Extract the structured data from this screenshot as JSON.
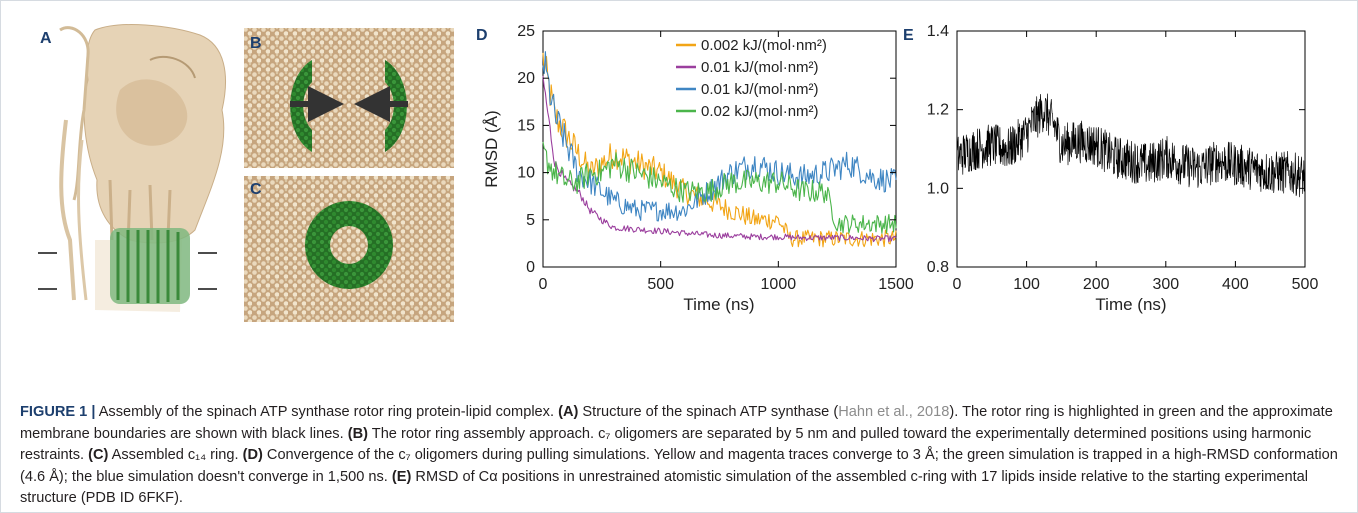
{
  "panels": {
    "a": {
      "letter": "A"
    },
    "b": {
      "letter": "B"
    },
    "c": {
      "letter": "C"
    },
    "d": {
      "letter": "D"
    },
    "e": {
      "letter": "E"
    }
  },
  "colors": {
    "protein": "#d9c2a0",
    "rotor": "#3f8f3f",
    "lipid": "#ead9bd",
    "lipid_bg": "#c6a57e",
    "ring": "#2a7f2a",
    "yellow": "#f2a516",
    "magenta": "#9b3f9e",
    "blue": "#3f86c3",
    "green": "#4bb54b",
    "black": "#000000",
    "label_blue": "#1d3f6e"
  },
  "chart_data": [
    {
      "panel": "D",
      "type": "line",
      "xlabel": "Time (ns)",
      "ylabel": "RMSD (Å)",
      "xlim": [
        0,
        1500
      ],
      "ylim": [
        0,
        25
      ],
      "xticks": [
        0,
        500,
        1000,
        1500
      ],
      "yticks": [
        0,
        5,
        10,
        15,
        20,
        25
      ],
      "legend_position": "top-right",
      "series": [
        {
          "name": "0.002 kJ/(mol·nm²)",
          "color": "#f2a516",
          "x": [
            0,
            50,
            100,
            150,
            200,
            250,
            300,
            400,
            500,
            600,
            700,
            800,
            900,
            1000,
            1050,
            1100,
            1200,
            1300,
            1400,
            1500
          ],
          "y": [
            22,
            16,
            14,
            12,
            10,
            11,
            12,
            11,
            10,
            8,
            7,
            6,
            5,
            5,
            3,
            3,
            3,
            3,
            3,
            3
          ]
        },
        {
          "name": "0.01 kJ/(mol·nm²)",
          "color": "#9b3f9e",
          "x": [
            0,
            50,
            100,
            150,
            200,
            250,
            300,
            400,
            500,
            600,
            700,
            800,
            900,
            1000,
            1100,
            1200,
            1300,
            1400,
            1500
          ],
          "y": [
            20,
            11,
            9,
            8,
            6,
            5,
            4.2,
            4,
            3.8,
            3.6,
            3.4,
            3.3,
            3.2,
            3.2,
            3.1,
            3.1,
            3.1,
            3,
            3
          ]
        },
        {
          "name": "0.01 kJ/(mol·nm²)",
          "color": "#3f86c3",
          "x": [
            0,
            50,
            100,
            150,
            200,
            250,
            300,
            400,
            500,
            600,
            700,
            800,
            900,
            1000,
            1100,
            1200,
            1300,
            1400,
            1500
          ],
          "y": [
            22,
            16,
            13,
            10,
            9,
            8,
            7,
            6,
            6,
            6,
            8,
            10,
            11,
            10,
            9.5,
            10,
            11,
            9.5,
            9
          ]
        },
        {
          "name": "0.02 kJ/(mol·nm²)",
          "color": "#4bb54b",
          "x": [
            0,
            50,
            100,
            150,
            200,
            250,
            300,
            400,
            500,
            600,
            700,
            800,
            900,
            1000,
            1100,
            1200,
            1250,
            1300,
            1400,
            1500
          ],
          "y": [
            12,
            10,
            9,
            9,
            10,
            10,
            11,
            10,
            9,
            8,
            8,
            9,
            9,
            9,
            8,
            8,
            4.6,
            4.6,
            4.6,
            4.6
          ]
        }
      ]
    },
    {
      "panel": "E",
      "type": "line",
      "xlabel": "Time (ns)",
      "ylabel": "",
      "xlim": [
        0,
        500
      ],
      "ylim": [
        0.8,
        1.4
      ],
      "xticks": [
        0,
        100,
        200,
        300,
        400,
        500
      ],
      "yticks": [
        0.8,
        1.0,
        1.2,
        1.4
      ],
      "series": [
        {
          "color": "#000000",
          "x": [
            0,
            25,
            50,
            75,
            100,
            110,
            125,
            140,
            150,
            175,
            200,
            225,
            250,
            275,
            300,
            325,
            350,
            375,
            400,
            425,
            450,
            475,
            500
          ],
          "y": [
            1.08,
            1.1,
            1.11,
            1.1,
            1.14,
            1.17,
            1.2,
            1.16,
            1.11,
            1.12,
            1.11,
            1.08,
            1.07,
            1.06,
            1.08,
            1.06,
            1.05,
            1.07,
            1.06,
            1.05,
            1.04,
            1.04,
            1.03
          ]
        }
      ]
    }
  ],
  "caption": {
    "figure_label": "FIGURE 1 |",
    "intro": " Assembly of the spinach ATP synthase rotor ring protein-lipid complex. ",
    "a_tag": "(A)",
    "a_text": " Structure of the spinach ATP synthase (",
    "citation": "Hahn et al., 2018",
    "a_text2": "). The rotor ring is highlighted in green and the approximate membrane boundaries are shown with black lines. ",
    "b_tag": "(B)",
    "b_text": " The rotor ring assembly approach. c₇ oligomers are separated by 5 nm and pulled toward the experimentally determined positions using harmonic restraints. ",
    "c_tag": "(C)",
    "c_text": " Assembled c₁₄ ring. ",
    "d_tag": "(D)",
    "d_text": " Convergence of the c₇ oligomers during pulling simulations. Yellow and magenta traces converge to 3 Å; the green simulation is trapped in a high-RMSD conformation (4.6 Å); the blue simulation doesn't converge in 1,500 ns. ",
    "e_tag": "(E)",
    "e_text": " RMSD of Cα positions in unrestrained atomistic simulation of the assembled c-ring with 17 lipids inside relative to the starting experimental structure (PDB ID 6FKF)."
  }
}
